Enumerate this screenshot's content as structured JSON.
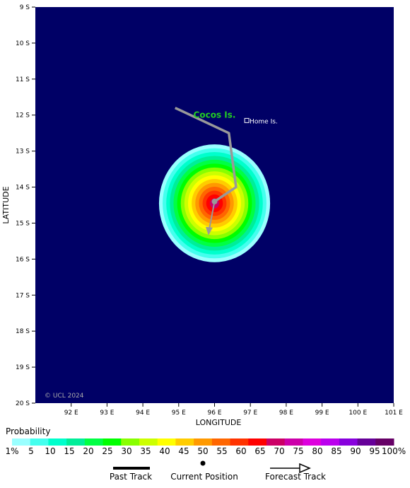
{
  "axes": {
    "ylabel": "LATITUDE",
    "xlabel": "LONGITUDE",
    "lat_ticks": [
      "9 S",
      "10 S",
      "11 S",
      "12 S",
      "13 S",
      "14 S",
      "15 S",
      "16 S",
      "17 S",
      "18 S",
      "19 S",
      "20 S"
    ],
    "lon_ticks": [
      "92 E",
      "93 E",
      "94 E",
      "95 E",
      "96 E",
      "97 E",
      "98 E",
      "99 E",
      "100 E",
      "101 E"
    ],
    "lat_range": [
      -9,
      -20
    ],
    "lon_range": [
      91,
      101
    ]
  },
  "map": {
    "background_color": "#000066",
    "copyright": "© UCL 2024",
    "places": [
      {
        "label": "Cocos Is.",
        "lon": 96.0,
        "lat": -12.0,
        "color": "#22cc22"
      },
      {
        "label": "Home Is.",
        "lon": 96.9,
        "lat": -12.15,
        "color": "#ffffff"
      }
    ]
  },
  "track": {
    "past": [
      [
        94.9,
        -11.8
      ],
      [
        96.4,
        -12.5
      ],
      [
        96.6,
        -14.0
      ],
      [
        96.0,
        -14.4
      ]
    ],
    "current": [
      96.0,
      -14.4
    ],
    "forecast": [
      [
        96.0,
        -14.4
      ],
      [
        95.85,
        -15.3
      ]
    ],
    "color": "#999999"
  },
  "probability": {
    "center": [
      96.0,
      -14.45
    ],
    "max_percent": 72,
    "radius_deg": 1.55
  },
  "legend": {
    "title": "Probability",
    "labels": [
      "1%",
      "5",
      "10",
      "15",
      "20",
      "25",
      "30",
      "35",
      "40",
      "45",
      "50",
      "55",
      "60",
      "65",
      "70",
      "75",
      "80",
      "85",
      "90",
      "95",
      "100%"
    ],
    "colors": [
      "#99ffff",
      "#44ffee",
      "#00ffcc",
      "#00ee99",
      "#00ff44",
      "#00ff00",
      "#88ff00",
      "#ccff00",
      "#ffff00",
      "#ffcc00",
      "#ff9900",
      "#ff6600",
      "#ff3300",
      "#ff0000",
      "#cc0066",
      "#cc00aa",
      "#dd00dd",
      "#bb00ee",
      "#8800dd",
      "#660099",
      "#660066"
    ],
    "past_track": "Past Track",
    "current_position": "Current Position",
    "forecast_track": "Forecast Track"
  }
}
